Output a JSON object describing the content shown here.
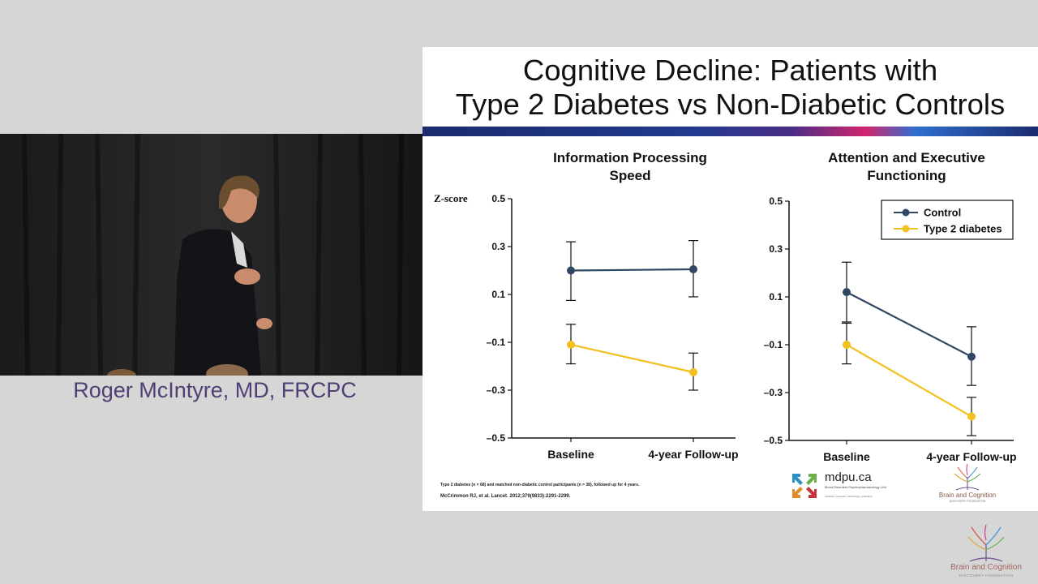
{
  "speaker": {
    "name": "Roger McIntyre, MD, FRCPC"
  },
  "slide": {
    "title_line1": "Cognitive Decline: Patients with",
    "title_line2": "Type 2 Diabetes vs Non-Diabetic Controls",
    "footnote": "Type 2 diabetes (n = 68) and matched non-diabetic control participants (n = 38), followed up for 4 years.",
    "citation": "McCrimmon RJ, et al. Lancet. 2012;379(9833):2291-2299."
  },
  "logos": {
    "mdpu": {
      "name": "mdpu.ca",
      "subtitle": "Mood Disorders Psychopharmacology Unit",
      "tagline": "medicine | research | technology | education"
    },
    "brain_cognition": {
      "name": "Brain and Cognition",
      "subtitle": "DISCOVERY FOUNDATION"
    }
  },
  "colors": {
    "control": "#2f4763",
    "diabetes": "#f2c01f",
    "speaker_text": "#4f3f74"
  },
  "chart_data": [
    {
      "type": "line",
      "title_line1": "Information Processing",
      "title_line2": "Speed",
      "ylabel": "Z-score",
      "categories": [
        "Baseline",
        "4-year Follow-up"
      ],
      "yticks": [
        "0.5",
        "0.3",
        "0.1",
        "–0.1",
        "–0.3",
        "–0.5"
      ],
      "ytick_values": [
        0.5,
        0.3,
        0.1,
        -0.1,
        -0.3,
        -0.5
      ],
      "ylim": [
        -0.5,
        0.5
      ],
      "series": [
        {
          "name": "Control",
          "values": [
            0.2,
            0.205
          ],
          "err_low": [
            0.075,
            0.09
          ],
          "err_high": [
            0.32,
            0.325
          ]
        },
        {
          "name": "Type 2 diabetes",
          "values": [
            -0.11,
            -0.225
          ],
          "err_low": [
            -0.19,
            -0.3
          ],
          "err_high": [
            -0.025,
            -0.145
          ]
        }
      ]
    },
    {
      "type": "line",
      "title_line1": "Attention and Executive",
      "title_line2": "Functioning",
      "ylabel": "",
      "categories": [
        "Baseline",
        "4-year Follow-up"
      ],
      "yticks": [
        "0.5",
        "0.3",
        "0.1",
        "–0.1",
        "–0.3",
        "–0.5"
      ],
      "ytick_values": [
        0.5,
        0.3,
        0.1,
        -0.1,
        -0.3,
        -0.5
      ],
      "ylim": [
        -0.5,
        0.5
      ],
      "legend": {
        "position": "top-right",
        "entries": [
          "Control",
          "Type 2 diabetes"
        ]
      },
      "series": [
        {
          "name": "Control",
          "values": [
            0.12,
            -0.15
          ],
          "err_low": [
            -0.005,
            -0.27
          ],
          "err_high": [
            0.245,
            -0.025
          ]
        },
        {
          "name": "Type 2 diabetes",
          "values": [
            -0.1,
            -0.4
          ],
          "err_low": [
            -0.18,
            -0.48
          ],
          "err_high": [
            -0.01,
            -0.32
          ]
        }
      ]
    }
  ]
}
